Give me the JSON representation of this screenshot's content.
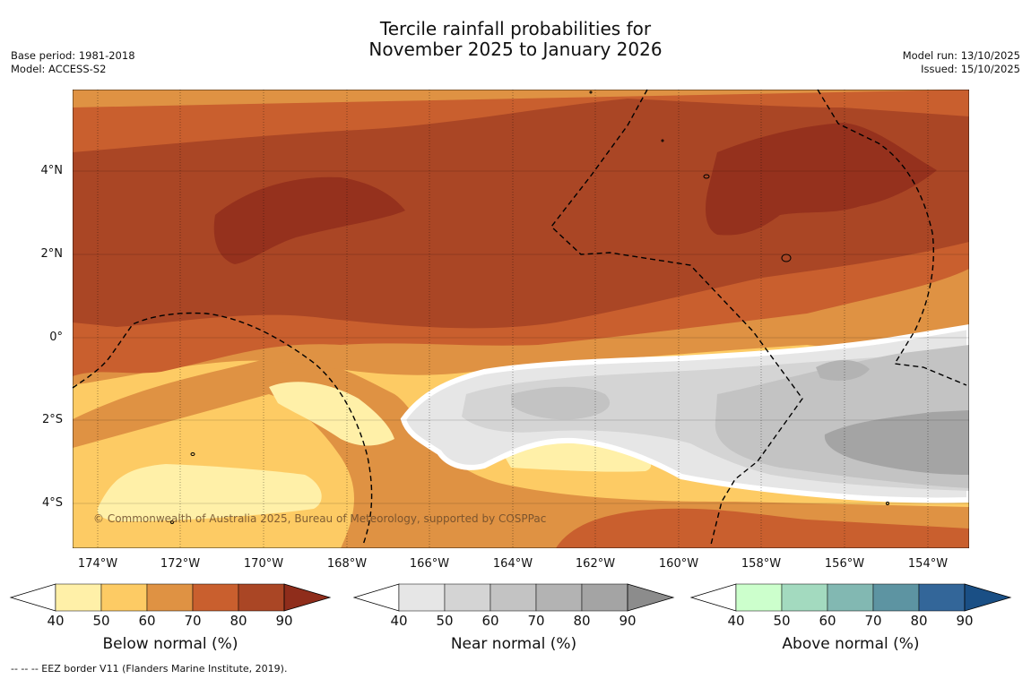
{
  "title": {
    "line1": "Tercile rainfall probabilities for",
    "line2": "November 2025 to January 2026"
  },
  "meta": {
    "base_period": "Base period: 1981-2018",
    "model": "Model: ACCESS-S2",
    "model_run": "Model run: 13/10/2025",
    "issued": "Issued: 15/10/2025"
  },
  "map": {
    "lat_labels": [
      "4°N",
      "2°N",
      "0°",
      "2°S",
      "4°S"
    ],
    "lon_labels": [
      "174°W",
      "172°W",
      "170°W",
      "168°W",
      "166°W",
      "164°W",
      "162°W",
      "160°W",
      "158°W",
      "156°W",
      "154°W"
    ],
    "copyright": "© Commonwealth of Australia 2025, Bureau of Meteorology, supported by COSPPac"
  },
  "colorbars": [
    {
      "title": "Below normal (%)",
      "ticks": [
        "40",
        "50",
        "60",
        "70",
        "80",
        "90"
      ],
      "colors": [
        "#fff0a8",
        "#fdcb64",
        "#df9243",
        "#c95f2e",
        "#aa4625",
        "#8f2d1b"
      ]
    },
    {
      "title": "Near normal (%)",
      "ticks": [
        "40",
        "50",
        "60",
        "70",
        "80",
        "90"
      ],
      "colors": [
        "#e6e6e6",
        "#d4d4d4",
        "#c3c3c3",
        "#b3b3b3",
        "#a4a4a4",
        "#8c8c8c"
      ]
    },
    {
      "title": "Above normal (%)",
      "ticks": [
        "40",
        "50",
        "60",
        "70",
        "80",
        "90"
      ],
      "colors": [
        "#ccffcc",
        "#a3dabf",
        "#82b8b2",
        "#5d94a2",
        "#336699",
        "#1a4f85"
      ]
    }
  ],
  "footnote": "-- -- -- EEZ border V11 (Flanders Marine Institute, 2019)."
}
